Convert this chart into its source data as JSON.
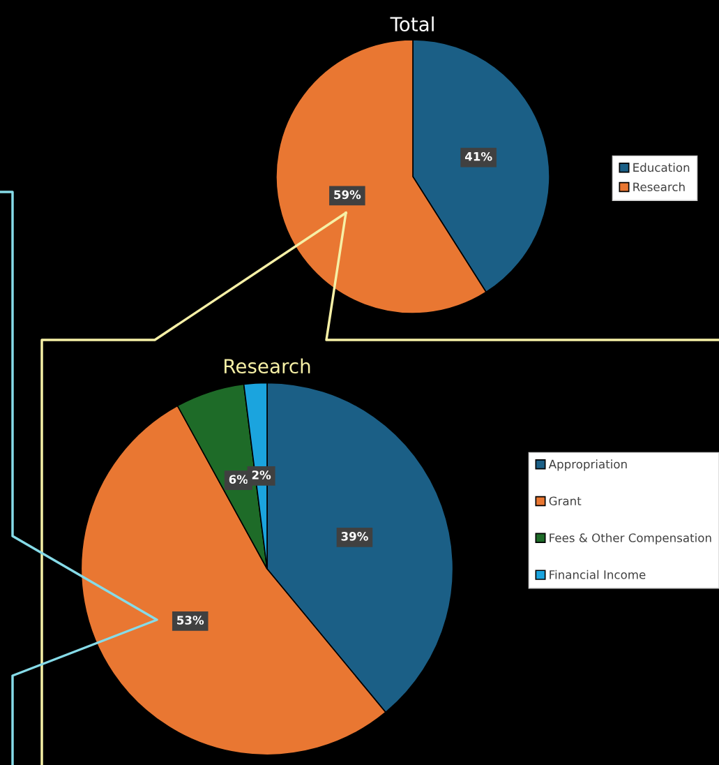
{
  "chart_data": [
    {
      "type": "pie",
      "title": "Total",
      "categories": [
        "Education",
        "Research"
      ],
      "values": [
        41,
        59
      ],
      "colors": [
        "#1b5f86",
        "#e97732"
      ],
      "value_labels": [
        "41%",
        "59%"
      ],
      "legend": "right"
    },
    {
      "type": "pie",
      "title": "Research",
      "categories": [
        "Appropriation",
        "Grant",
        "Fees & Other Compensation",
        "Financial Income"
      ],
      "values": [
        39,
        53,
        6,
        2
      ],
      "colors": [
        "#1b5f86",
        "#e97732",
        "#1e6b28",
        "#1ba4de"
      ],
      "value_labels": [
        "39%",
        "53%",
        "6%",
        "2%"
      ],
      "legend": "right"
    }
  ]
}
